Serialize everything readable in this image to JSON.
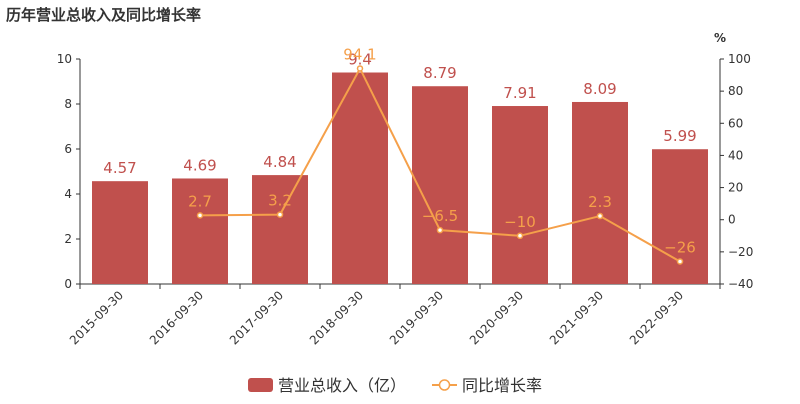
{
  "chart_data": {
    "type": "bar",
    "title": "历年营业总收入及同比增长率",
    "categories": [
      "2015-09-30",
      "2016-09-30",
      "2017-09-30",
      "2018-09-30",
      "2019-09-30",
      "2020-09-30",
      "2021-09-30",
      "2022-09-30"
    ],
    "series": [
      {
        "name": "营业总收入（亿）",
        "type": "bar",
        "color": "#c0504d",
        "values": [
          4.57,
          4.69,
          4.84,
          9.4,
          8.79,
          7.91,
          8.09,
          5.99
        ]
      },
      {
        "name": "同比增长率",
        "type": "line",
        "axis": "y2",
        "color": "#f5a04a",
        "values": [
          null,
          2.7,
          3.2,
          94.1,
          -6.5,
          -10,
          2.3,
          -26
        ],
        "value_labels": [
          null,
          "2.7",
          "3.2",
          "94.1",
          "−6.5",
          "−10",
          "2.3",
          "−26"
        ]
      }
    ],
    "ylim": [
      0,
      10
    ],
    "yticks": [
      0,
      2,
      4,
      6,
      8,
      10
    ],
    "y2lim": [
      -40,
      100
    ],
    "y2ticks": [
      {
        "value": -40,
        "label": "−40"
      },
      {
        "value": -20,
        "label": "−20"
      },
      0,
      20,
      40,
      60,
      80,
      100
    ],
    "y2label": "%"
  }
}
